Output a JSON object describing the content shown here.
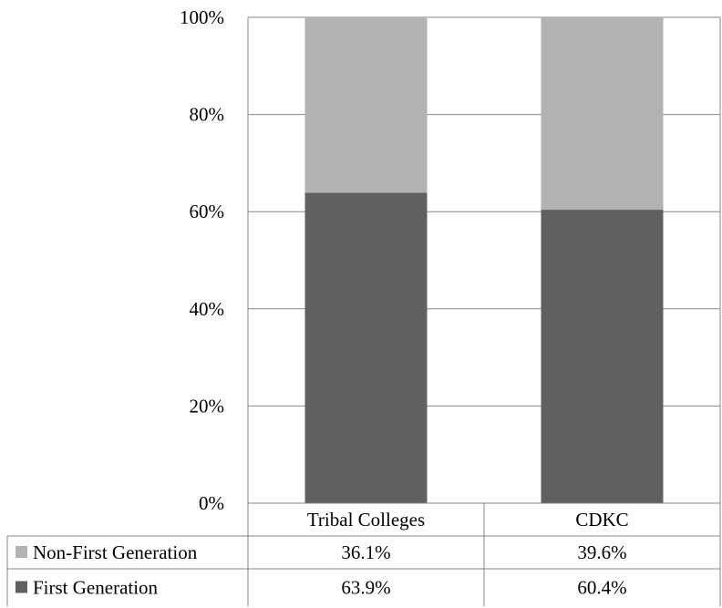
{
  "chart_data": {
    "type": "bar",
    "stacked": true,
    "normalized": true,
    "categories": [
      "Tribal Colleges",
      "CDKC"
    ],
    "series": [
      {
        "name": "First Generation",
        "values": [
          63.9,
          60.4
        ],
        "labels": [
          "63.9%",
          "60.4%"
        ],
        "color": "#606060"
      },
      {
        "name": "Non-First Generation",
        "values": [
          36.1,
          39.6
        ],
        "labels": [
          "36.1%",
          "39.6%"
        ],
        "color": "#b2b2b2"
      }
    ],
    "yticks": [
      "0%",
      "20%",
      "40%",
      "60%",
      "80%",
      "100%"
    ],
    "ylim": [
      0,
      100
    ],
    "grid": true,
    "legend": "data-table-left",
    "data_table": true
  }
}
